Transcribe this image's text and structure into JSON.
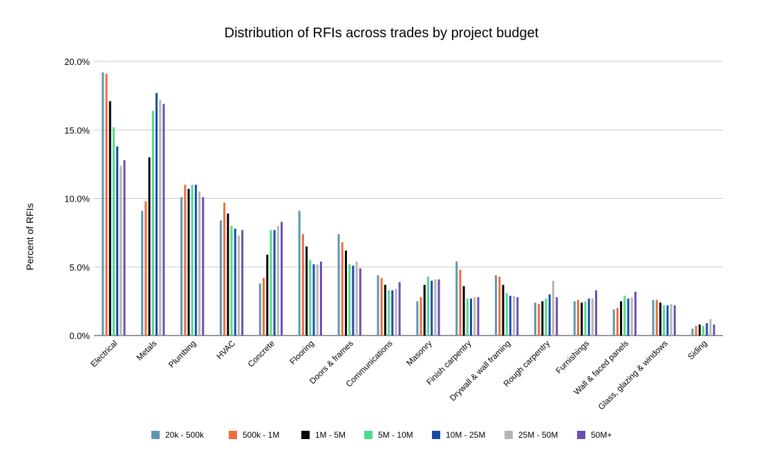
{
  "chart_data": {
    "type": "bar",
    "title": "Distribution of RFIs across trades by project budget",
    "xlabel": "",
    "ylabel": "Percent of RFIs",
    "ylim": [
      0,
      20
    ],
    "yticks": [
      "0.0%",
      "5.0%",
      "10.0%",
      "15.0%",
      "20.0%"
    ],
    "ytick_values": [
      0,
      5,
      10,
      15,
      20
    ],
    "grid": true,
    "legend_position": "bottom",
    "categories": [
      "Electrical",
      "Metals",
      "Plumbing",
      "HVAC",
      "Concrete",
      "Flooring",
      "Doors & frames",
      "Communications",
      "Masonry",
      "Finish carpentry",
      "Drywall & wall framing",
      "Rough carpentry",
      "Furnishings",
      "Wall & faced panels",
      "Glass, glazing & windows",
      "Siding"
    ],
    "series": [
      {
        "name": "20k - 500k",
        "color": "#5b97b0",
        "values": [
          19.2,
          9.1,
          10.1,
          8.4,
          3.8,
          9.1,
          7.4,
          4.4,
          2.5,
          5.4,
          4.4,
          2.4,
          2.5,
          1.9,
          2.6,
          0.5
        ]
      },
      {
        "name": "500k - 1M",
        "color": "#f26b38",
        "values": [
          19.1,
          9.8,
          11.0,
          9.7,
          4.2,
          7.4,
          6.8,
          4.2,
          2.8,
          4.8,
          4.3,
          2.3,
          2.6,
          2.0,
          2.6,
          0.7
        ]
      },
      {
        "name": "1M - 5M",
        "color": "#000000",
        "values": [
          17.1,
          13.0,
          10.7,
          8.9,
          5.9,
          6.5,
          6.2,
          3.7,
          3.7,
          3.6,
          3.7,
          2.5,
          2.4,
          2.5,
          2.4,
          0.8
        ]
      },
      {
        "name": "5M - 10M",
        "color": "#4fd98d",
        "values": [
          15.2,
          16.4,
          11.0,
          8.0,
          7.7,
          5.5,
          5.2,
          3.3,
          4.3,
          2.7,
          3.1,
          2.7,
          2.5,
          2.9,
          2.2,
          0.7
        ]
      },
      {
        "name": "10M - 25M",
        "color": "#1a4aa8",
        "values": [
          13.8,
          17.7,
          11.0,
          7.8,
          7.7,
          5.2,
          5.1,
          3.3,
          4.0,
          2.7,
          2.9,
          3.0,
          2.7,
          2.7,
          2.2,
          0.9
        ]
      },
      {
        "name": "25M - 50M",
        "color": "#b5b5b5",
        "values": [
          12.4,
          17.2,
          10.5,
          7.3,
          8.0,
          5.2,
          5.4,
          3.4,
          4.1,
          2.8,
          2.9,
          4.0,
          2.7,
          2.8,
          2.3,
          1.2
        ]
      },
      {
        "name": "50M+",
        "color": "#6a4fb0",
        "values": [
          12.8,
          16.9,
          10.1,
          7.7,
          8.3,
          5.4,
          4.9,
          3.9,
          4.1,
          2.8,
          2.8,
          2.8,
          3.3,
          3.2,
          2.2,
          0.8
        ]
      }
    ]
  }
}
